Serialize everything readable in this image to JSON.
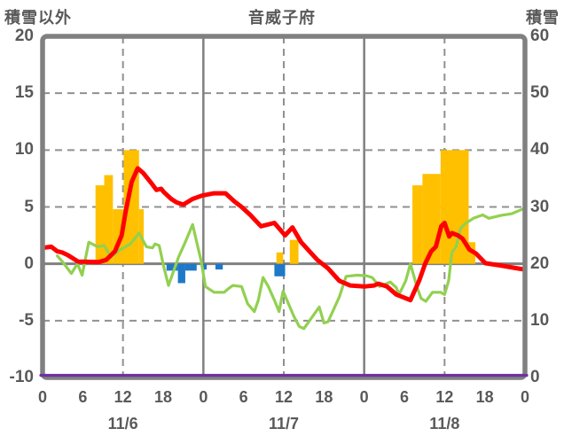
{
  "header": {
    "left_axis_title": "積雪以外",
    "station_title": "音威子府",
    "right_axis_title": "積雪"
  },
  "chart_data": {
    "type": "mixed",
    "title": "音威子府",
    "x_axis": {
      "unit": "hour",
      "range": [
        0,
        72
      ],
      "tick_interval_hours": 6,
      "tick_labels": [
        "0",
        "6",
        "12",
        "18",
        "0",
        "6",
        "12",
        "18",
        "0",
        "6",
        "12",
        "18",
        "0"
      ],
      "date_labels": [
        "11/6",
        "11/7",
        "11/8"
      ],
      "date_center_hours": [
        12,
        36,
        60
      ]
    },
    "left_axis": {
      "title": "積雪以外",
      "range": [
        -10,
        20
      ],
      "tick_labels": [
        "20",
        "15",
        "10",
        "5",
        "0",
        "-5",
        "-10"
      ],
      "tick_values": [
        20,
        15,
        10,
        5,
        0,
        -5,
        -10
      ]
    },
    "right_axis": {
      "title": "積雪",
      "range": [
        0,
        60
      ],
      "tick_labels": [
        "60",
        "50",
        "40",
        "30",
        "20",
        "10",
        "0"
      ],
      "tick_values": [
        60,
        50,
        40,
        30,
        20,
        10,
        0
      ]
    },
    "grid": {
      "h_dashed_values": [
        15,
        10,
        5,
        -5
      ],
      "h_solid_values": [
        0
      ],
      "v_dashed_hours": [
        12,
        36,
        60
      ],
      "v_solid_hours": [
        24,
        48
      ],
      "grid_color": "#909090",
      "axis_color": "#808080"
    },
    "series": [
      {
        "name": "orange-bars",
        "type": "bar",
        "axis": "left",
        "color": "#ffc000",
        "bars": [
          [
            7.9,
            9.2,
            6.9
          ],
          [
            9.2,
            10.5,
            7.8
          ],
          [
            10.5,
            12.1,
            4.8
          ],
          [
            12.1,
            14.4,
            10.0
          ],
          [
            14.4,
            15.1,
            4.8
          ],
          [
            34.9,
            35.9,
            1.0
          ],
          [
            36.9,
            38.2,
            2.1
          ],
          [
            55.2,
            56.7,
            6.9
          ],
          [
            56.7,
            59.4,
            7.9
          ],
          [
            59.4,
            63.6,
            10.0
          ],
          [
            63.6,
            64.6,
            1.9
          ]
        ]
      },
      {
        "name": "blue-bars",
        "type": "bar",
        "axis": "left",
        "color": "#1f78c8",
        "bars": [
          [
            18.5,
            20.2,
            -0.6
          ],
          [
            20.2,
            21.3,
            -1.7
          ],
          [
            21.3,
            23.0,
            -0.6
          ],
          [
            23.7,
            24.5,
            -0.5
          ],
          [
            25.8,
            26.9,
            -0.5
          ],
          [
            34.6,
            36.2,
            -1.1
          ]
        ]
      },
      {
        "name": "green-line",
        "type": "line",
        "axis": "left",
        "color": "#92d050",
        "width": 3.2,
        "points": [
          [
            2.2,
            0.7
          ],
          [
            3.0,
            0.15
          ],
          [
            4.3,
            -0.85
          ],
          [
            5.2,
            0.0
          ],
          [
            5.9,
            -1.0
          ],
          [
            6.9,
            1.9
          ],
          [
            8.2,
            1.5
          ],
          [
            9.2,
            1.6
          ],
          [
            10.2,
            0.6
          ],
          [
            11.5,
            1.2
          ],
          [
            13.1,
            1.75
          ],
          [
            14.4,
            2.7
          ],
          [
            15.5,
            1.5
          ],
          [
            16.4,
            1.4
          ],
          [
            16.8,
            1.75
          ],
          [
            17.4,
            1.6
          ],
          [
            18.1,
            -0.3
          ],
          [
            18.8,
            -1.9
          ],
          [
            20.3,
            0.6
          ],
          [
            21.3,
            1.9
          ],
          [
            22.4,
            3.45
          ],
          [
            23.7,
            0.15
          ],
          [
            24.3,
            -2.0
          ],
          [
            25.6,
            -2.5
          ],
          [
            27.1,
            -2.5
          ],
          [
            27.7,
            -2.2
          ],
          [
            28.4,
            -1.9
          ],
          [
            29.7,
            -2.0
          ],
          [
            30.6,
            -3.5
          ],
          [
            31.6,
            -4.2
          ],
          [
            32.2,
            -3.2
          ],
          [
            32.9,
            -1.2
          ],
          [
            33.7,
            -2.0
          ],
          [
            34.6,
            -3.2
          ],
          [
            35.3,
            -4.2
          ],
          [
            35.9,
            -2.4
          ],
          [
            37.5,
            -4.6
          ],
          [
            38.3,
            -5.5
          ],
          [
            39.0,
            -5.7
          ],
          [
            41.3,
            -3.8
          ],
          [
            42.0,
            -5.2
          ],
          [
            42.6,
            -5.1
          ],
          [
            44.3,
            -2.9
          ],
          [
            45.3,
            -1.1
          ],
          [
            47.0,
            -1.0
          ],
          [
            48.3,
            -1.05
          ],
          [
            49.2,
            -1.2
          ],
          [
            50.3,
            -2.0
          ],
          [
            51.9,
            -1.6
          ],
          [
            52.8,
            -2.1
          ],
          [
            53.2,
            -2.7
          ],
          [
            54.2,
            -1.5
          ],
          [
            54.9,
            0.0
          ],
          [
            55.9,
            -2.1
          ],
          [
            56.5,
            -3.05
          ],
          [
            57.2,
            -3.3
          ],
          [
            58.2,
            -2.5
          ],
          [
            59.4,
            -2.5
          ],
          [
            60.0,
            -2.7
          ],
          [
            60.6,
            -1.5
          ],
          [
            61.1,
            1.0
          ],
          [
            61.7,
            1.5
          ],
          [
            62.4,
            3.1
          ],
          [
            63.0,
            3.5
          ],
          [
            64.3,
            4.0
          ],
          [
            65.7,
            4.3
          ],
          [
            66.6,
            4.0
          ],
          [
            68.4,
            4.25
          ],
          [
            70.0,
            4.4
          ],
          [
            72.0,
            4.9
          ]
        ]
      },
      {
        "name": "red-line",
        "type": "line",
        "axis": "left",
        "color": "#ff0000",
        "width": 5,
        "points": [
          [
            0.0,
            1.4
          ],
          [
            1.3,
            1.5
          ],
          [
            2.2,
            1.1
          ],
          [
            2.9,
            1.0
          ],
          [
            3.8,
            0.75
          ],
          [
            5.3,
            0.2
          ],
          [
            8.4,
            0.15
          ],
          [
            9.5,
            0.35
          ],
          [
            10.8,
            1.1
          ],
          [
            11.8,
            2.5
          ],
          [
            12.4,
            4.6
          ],
          [
            13.3,
            7.2
          ],
          [
            14.2,
            8.4
          ],
          [
            15.0,
            8.0
          ],
          [
            16.1,
            7.2
          ],
          [
            17.0,
            6.5
          ],
          [
            17.7,
            6.6
          ],
          [
            18.1,
            6.3
          ],
          [
            19.2,
            5.7
          ],
          [
            20.0,
            5.4
          ],
          [
            21.0,
            5.2
          ],
          [
            22.4,
            5.7
          ],
          [
            23.8,
            6.0
          ],
          [
            25.6,
            6.2
          ],
          [
            27.3,
            6.2
          ],
          [
            28.6,
            5.5
          ],
          [
            29.7,
            5.0
          ],
          [
            31.0,
            4.3
          ],
          [
            32.6,
            3.3
          ],
          [
            34.6,
            3.6
          ],
          [
            36.2,
            2.5
          ],
          [
            37.3,
            3.2
          ],
          [
            38.6,
            1.9
          ],
          [
            41.0,
            0.35
          ],
          [
            42.6,
            -0.4
          ],
          [
            44.3,
            -1.5
          ],
          [
            45.9,
            -1.9
          ],
          [
            48.0,
            -2.0
          ],
          [
            49.5,
            -1.9
          ],
          [
            50.1,
            -1.75
          ],
          [
            51.4,
            -2.0
          ],
          [
            52.8,
            -2.7
          ],
          [
            54.9,
            -3.2
          ],
          [
            56.2,
            -1.5
          ],
          [
            57.1,
            0.0
          ],
          [
            58.0,
            1.1
          ],
          [
            58.7,
            1.5
          ],
          [
            59.5,
            3.3
          ],
          [
            60.0,
            3.6
          ],
          [
            60.7,
            2.4
          ],
          [
            61.1,
            2.7
          ],
          [
            62.0,
            2.5
          ],
          [
            62.7,
            2.2
          ],
          [
            63.7,
            1.25
          ],
          [
            64.7,
            0.9
          ],
          [
            66.1,
            0.05
          ],
          [
            68.4,
            -0.15
          ],
          [
            71.3,
            -0.45
          ],
          [
            72.0,
            -0.5
          ]
        ]
      },
      {
        "name": "purple-line",
        "type": "line",
        "axis": "right",
        "color": "#7030a0",
        "width": 3.2,
        "points": [
          [
            0,
            0
          ],
          [
            72,
            0
          ]
        ]
      }
    ]
  }
}
